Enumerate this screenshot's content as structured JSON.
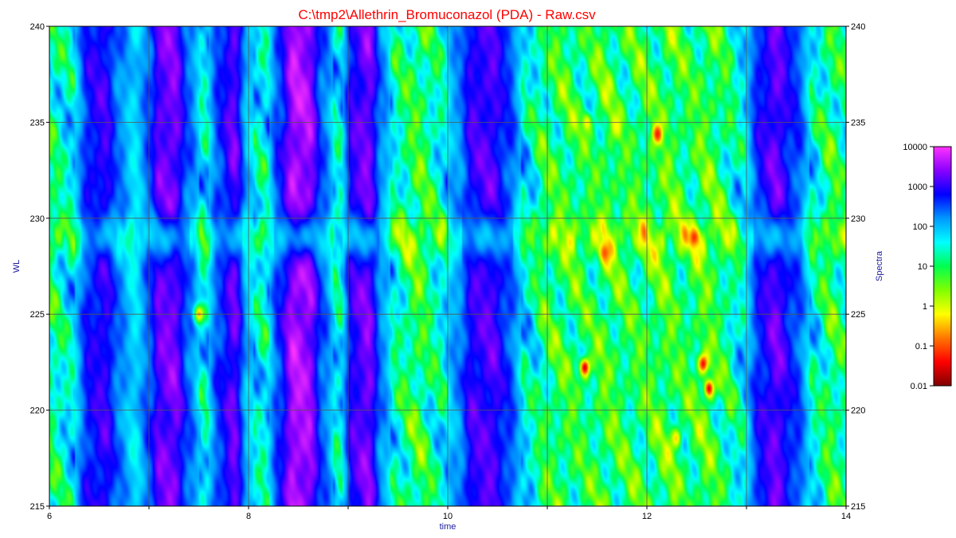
{
  "chart_data": {
    "type": "heatmap",
    "title": "C:\\tmp2\\Allethrin_Bromuconazol (PDA) - Raw.csv",
    "xlabel": "time",
    "ylabel": "WL",
    "y2label": "Spectra",
    "xlim": [
      6,
      14
    ],
    "ylim": [
      215,
      240
    ],
    "x_ticks": [
      "6",
      "8",
      "10",
      "12",
      "14"
    ],
    "y_ticks": [
      "215",
      "220",
      "225",
      "230",
      "235",
      "240"
    ],
    "x_grid": [
      6,
      7,
      8,
      9,
      10,
      11,
      12,
      13,
      14
    ],
    "y_grid": [
      215,
      220,
      225,
      230,
      235,
      240
    ],
    "grid": true,
    "legend": {
      "placement": "right",
      "scale": "log",
      "labels": [
        "10000",
        "1000",
        "100",
        "10",
        "1",
        "0.1",
        "0.01"
      ],
      "colors": [
        "#ff33ff",
        "#8a00ff",
        "#0000ff",
        "#0098ff",
        "#00ffff",
        "#00ff50",
        "#7fff00",
        "#ffff00",
        "#ff7700",
        "#ff0000",
        "#800000"
      ]
    },
    "column_profiles": {
      "time": [
        6.0,
        6.2,
        6.4,
        6.55,
        6.7,
        6.85,
        7.0,
        7.1,
        7.25,
        7.4,
        7.55,
        7.7,
        7.85,
        8.0,
        8.15,
        8.3,
        8.45,
        8.6,
        8.75,
        8.9,
        9.05,
        9.2,
        9.35,
        9.5,
        9.7,
        9.9,
        10.1,
        10.25,
        10.45,
        10.6,
        10.8,
        11.0,
        11.2,
        11.4,
        11.6,
        11.8,
        12.0,
        12.2,
        12.4,
        12.6,
        12.8,
        12.95,
        13.15,
        13.3,
        13.5,
        13.7,
        13.85,
        14.0
      ],
      "baseline_log_intensity": [
        1.2,
        1.6,
        2.8,
        3.0,
        2.3,
        1.8,
        2.5,
        3.2,
        3.3,
        2.4,
        1.6,
        2.6,
        3.2,
        1.9,
        1.5,
        2.6,
        3.6,
        3.5,
        2.4,
        1.6,
        3.0,
        3.3,
        2.2,
        1.3,
        0.9,
        1.4,
        2.2,
        3.0,
        3.1,
        2.6,
        1.6,
        1.0,
        0.9,
        1.1,
        0.8,
        1.0,
        0.9,
        0.8,
        1.0,
        0.8,
        1.1,
        1.6,
        2.8,
        3.2,
        2.6,
        1.5,
        1.0,
        1.2
      ]
    },
    "band_wavelength": 229,
    "hot_spots": [
      {
        "time": 11.38,
        "wl": 222.2,
        "log_intensity": -1.6
      },
      {
        "time": 12.57,
        "wl": 222.4,
        "log_intensity": -1.4
      },
      {
        "time": 12.63,
        "wl": 221.1,
        "log_intensity": -1.5
      },
      {
        "time": 12.48,
        "wl": 229.0,
        "log_intensity": -1.2
      },
      {
        "time": 12.11,
        "wl": 234.4,
        "log_intensity": -1.3
      },
      {
        "time": 11.58,
        "wl": 228.2,
        "log_intensity": -1.0
      },
      {
        "time": 7.5,
        "wl": 225.0,
        "log_intensity": -0.6
      },
      {
        "time": 12.3,
        "wl": 218.5,
        "log_intensity": -0.4
      },
      {
        "time": 11.4,
        "wl": 235.0,
        "log_intensity": -0.3
      },
      {
        "time": 11.7,
        "wl": 234.8,
        "log_intensity": -0.2
      }
    ]
  }
}
